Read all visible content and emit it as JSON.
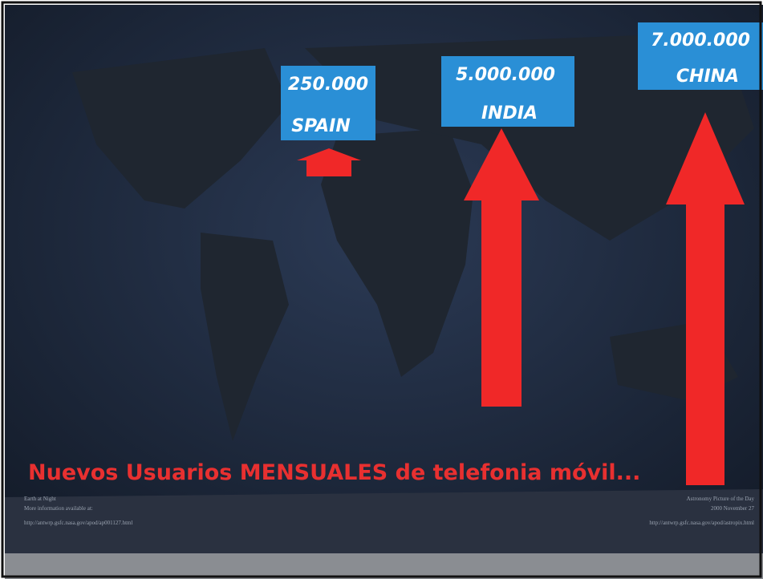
{
  "labels": [
    {
      "number": "250.000",
      "country": "SPAIN"
    },
    {
      "number": "5.000.000",
      "country": "INDIA"
    },
    {
      "number": "7.000.000",
      "country": "CHINA"
    }
  ],
  "headline": "Nuevos Usuarios MENSUALES de telefonia móvil...",
  "credits_left": [
    "Earth at Night",
    "More information available at:",
    "http://antwrp.gsfc.nasa.gov/apod/ap001127.html"
  ],
  "credits_right": [
    "Astronomy Picture of the Day",
    "2000 November 27",
    "http://antwrp.gsfc.nasa.gov/apod/astropix.html"
  ]
}
